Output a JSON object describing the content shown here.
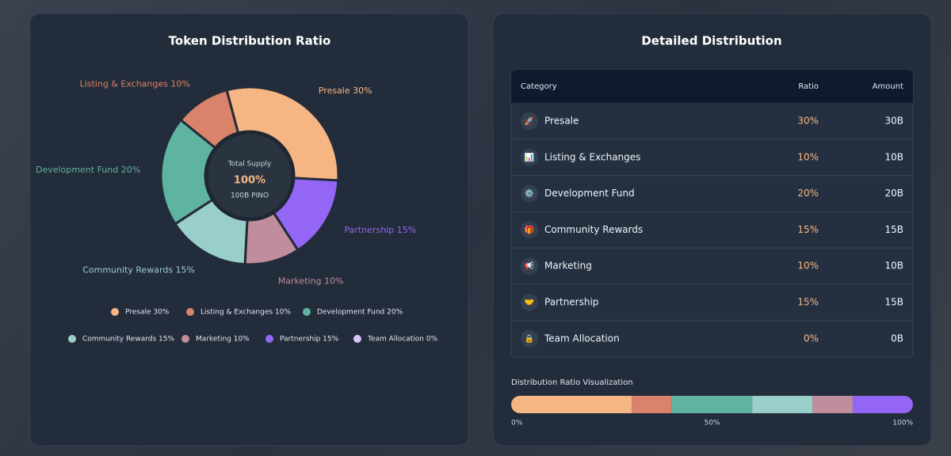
{
  "distribution_chart": {
    "type": "pie",
    "title": "Token Distribution Ratio",
    "center": {
      "caption": "Total Supply",
      "total": "100%",
      "supply": "100B PINO"
    },
    "categories": [
      "Presale",
      "Listing & Exchanges",
      "Development Fund",
      "Community Rewards",
      "Marketing",
      "Partnership",
      "Team Allocation"
    ],
    "labels": [
      "Presale 30%",
      "Listing & Exchanges 10%",
      "Development Fund 20%",
      "Community Rewards 15%",
      "Marketing 10%",
      "Partnership 15%",
      "Team Allocation 0%"
    ],
    "values": [
      30,
      10,
      20,
      15,
      10,
      15,
      0
    ],
    "colors": [
      "#f6b683",
      "#d9836a",
      "#5fb3a1",
      "#99cfcb",
      "#c08d9c",
      "#9466f5",
      "#d9c3f5"
    ]
  },
  "detail": {
    "title": "Detailed Distribution",
    "header": [
      "Category",
      "Ratio",
      "Amount"
    ],
    "rows": [
      {
        "icon": "🚀",
        "category": "Presale",
        "ratio": "30%",
        "amount": "30B"
      },
      {
        "icon": "📊",
        "category": "Listing & Exchanges",
        "ratio": "10%",
        "amount": "10B"
      },
      {
        "icon": "⚙️",
        "category": "Development Fund",
        "ratio": "20%",
        "amount": "20B"
      },
      {
        "icon": "🎁",
        "category": "Community Rewards",
        "ratio": "15%",
        "amount": "15B"
      },
      {
        "icon": "📢",
        "category": "Marketing",
        "ratio": "10%",
        "amount": "10B"
      },
      {
        "icon": "🤝",
        "category": "Partnership",
        "ratio": "15%",
        "amount": "15B"
      },
      {
        "icon": "🔒",
        "category": "Team Allocation",
        "ratio": "0%",
        "amount": "0B"
      }
    ]
  },
  "ratio_bar": {
    "type": "bar",
    "title": "Distribution Ratio Visualization",
    "xlim": [
      0,
      100
    ],
    "xticks": [
      {
        "value": 0,
        "label": "0%"
      },
      {
        "value": 50,
        "label": "50%"
      },
      {
        "value": 100,
        "label": "100%"
      }
    ]
  }
}
